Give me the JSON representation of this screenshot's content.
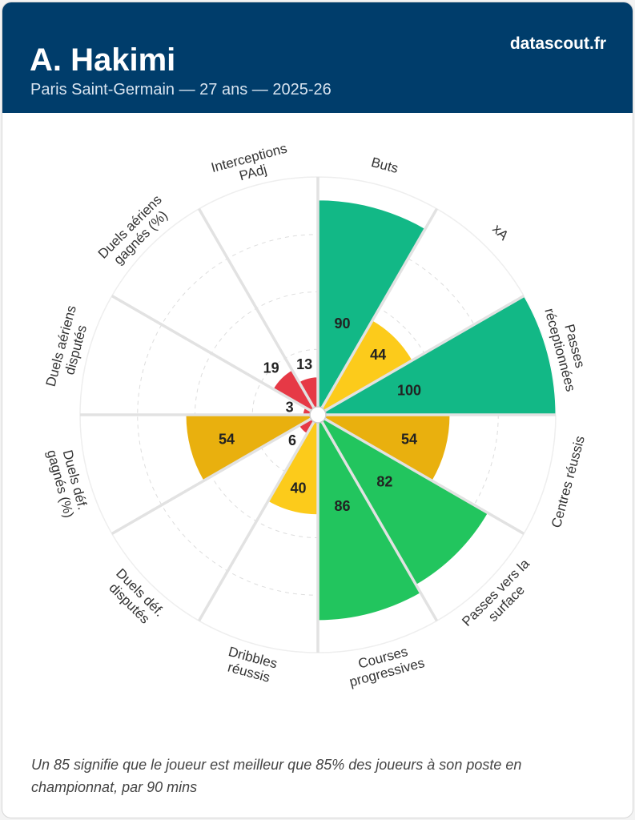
{
  "header": {
    "title": "A. Hakimi",
    "subtitle": "Paris Saint-Germain — 27 ans — 2025-26",
    "brand": "datascout.fr",
    "background": "#003d6b"
  },
  "chart_data": {
    "type": "polar-bar",
    "rlim": [
      0,
      100
    ],
    "grid": true,
    "categories": [
      {
        "label": [
          "Buts"
        ],
        "value": 90,
        "color": "#12b886"
      },
      {
        "label": [
          "xA"
        ],
        "value": 44,
        "color": "#fccb1b"
      },
      {
        "label": [
          "Passes",
          "réceptionnées"
        ],
        "value": 100,
        "color": "#12b886"
      },
      {
        "label": [
          "Centres réussis"
        ],
        "value": 54,
        "color": "#e9b00e"
      },
      {
        "label": [
          "Passes vers la",
          "surface"
        ],
        "value": 82,
        "color": "#22c55e"
      },
      {
        "label": [
          "Courses",
          "progressives"
        ],
        "value": 86,
        "color": "#22c55e"
      },
      {
        "label": [
          "Dribbles",
          "réussis"
        ],
        "value": 40,
        "color": "#fccb1b"
      },
      {
        "label": [
          "Duels déf.",
          "disputés"
        ],
        "value": 6,
        "color": "#e63946"
      },
      {
        "label": [
          "Duels déf.",
          "gagnés (%)"
        ],
        "value": 54,
        "color": "#e9b00e"
      },
      {
        "label": [
          "Duels aériens",
          "disputés"
        ],
        "value": 3,
        "color": "#e63946"
      },
      {
        "label": [
          "Duels aériens",
          "gagnés (%)"
        ],
        "value": 19,
        "color": "#e63946"
      },
      {
        "label": [
          "Interceptions",
          "PAdj"
        ],
        "value": 13,
        "color": "#e63946"
      }
    ]
  },
  "footnote": "Un 85 signifie que le joueur est meilleur que 85% des joueurs à son poste en championnat, par 90 mins"
}
